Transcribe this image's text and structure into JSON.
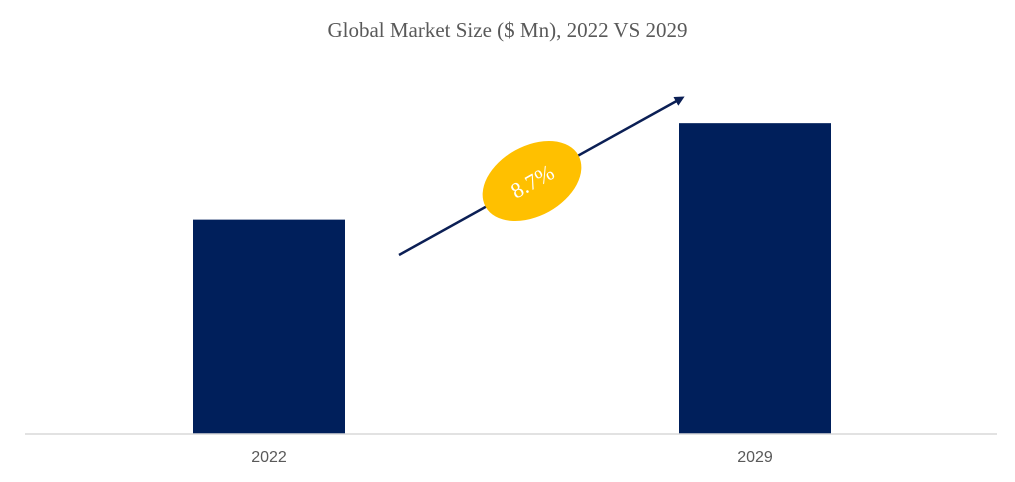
{
  "chart_data": {
    "type": "bar",
    "title": "Global Market Size ($ Mn), 2022 VS 2029",
    "categories": [
      "2022",
      "2029"
    ],
    "values": [
      100,
      145
    ],
    "ylim": [
      0,
      160
    ],
    "grid": false,
    "legend": "none",
    "annotation": {
      "text": "8.7%",
      "arrow_from": "2022",
      "arrow_to": "2029"
    },
    "colors": {
      "bar": "#001f5b",
      "arrow": "#0b1f55",
      "badge": "#ffc000",
      "axis": "#d9d9d9"
    }
  }
}
